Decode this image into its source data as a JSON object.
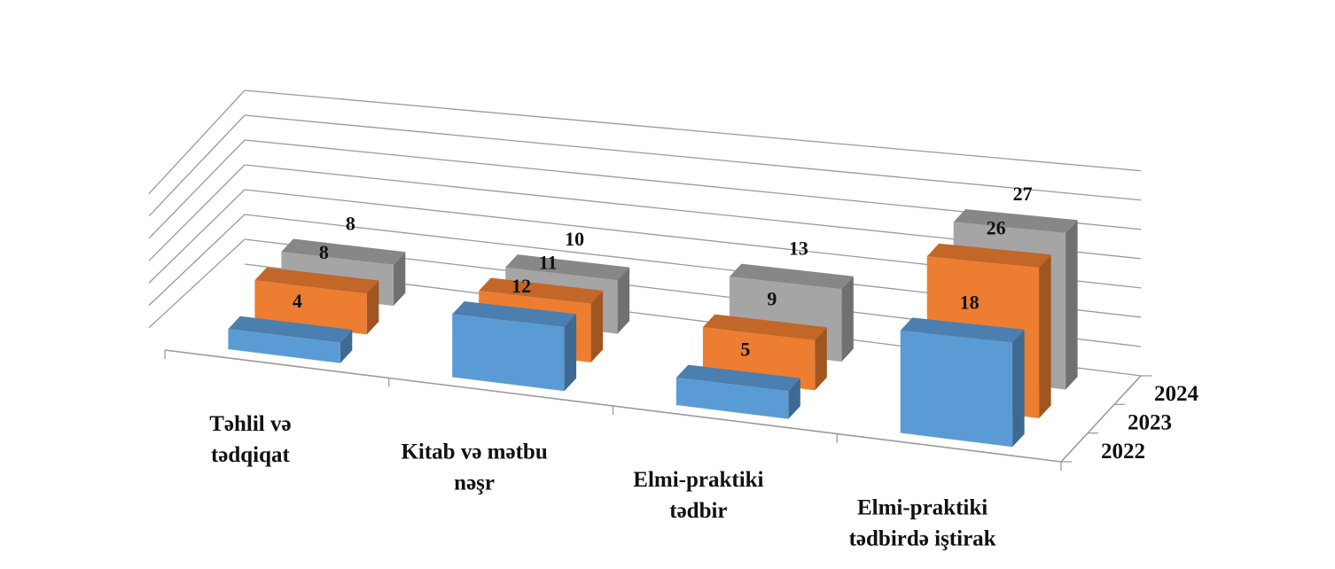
{
  "chart_data": {
    "type": "bar",
    "subtype": "3d-column",
    "categories": [
      "Təhlil və tədqiqat",
      "Kitab və mətbu nəşr",
      "Elmi-praktiki tədbir",
      "Elmi-praktiki tədbirdə iştirak"
    ],
    "category_lines": [
      [
        "Təhlil və",
        "tədqiqat"
      ],
      [
        "Kitab və mətbu",
        "nəşr"
      ],
      [
        "Elmi-praktiki",
        "tədbir"
      ],
      [
        "Elmi-praktiki",
        "tədbirdə iştirak"
      ]
    ],
    "series": [
      {
        "name": "2022",
        "values": [
          4,
          12,
          5,
          18
        ],
        "color": "#5b9bd5"
      },
      {
        "name": "2023",
        "values": [
          8,
          11,
          9,
          26
        ],
        "color": "#ed7d31"
      },
      {
        "name": "2024",
        "values": [
          8,
          10,
          13,
          27
        ],
        "color": "#a5a5a5"
      }
    ],
    "depth_axis_labels": [
      "2022",
      "2023",
      "2024"
    ],
    "ylim": [
      0,
      35
    ],
    "data_labels": true,
    "grid": true,
    "legend": "none"
  }
}
